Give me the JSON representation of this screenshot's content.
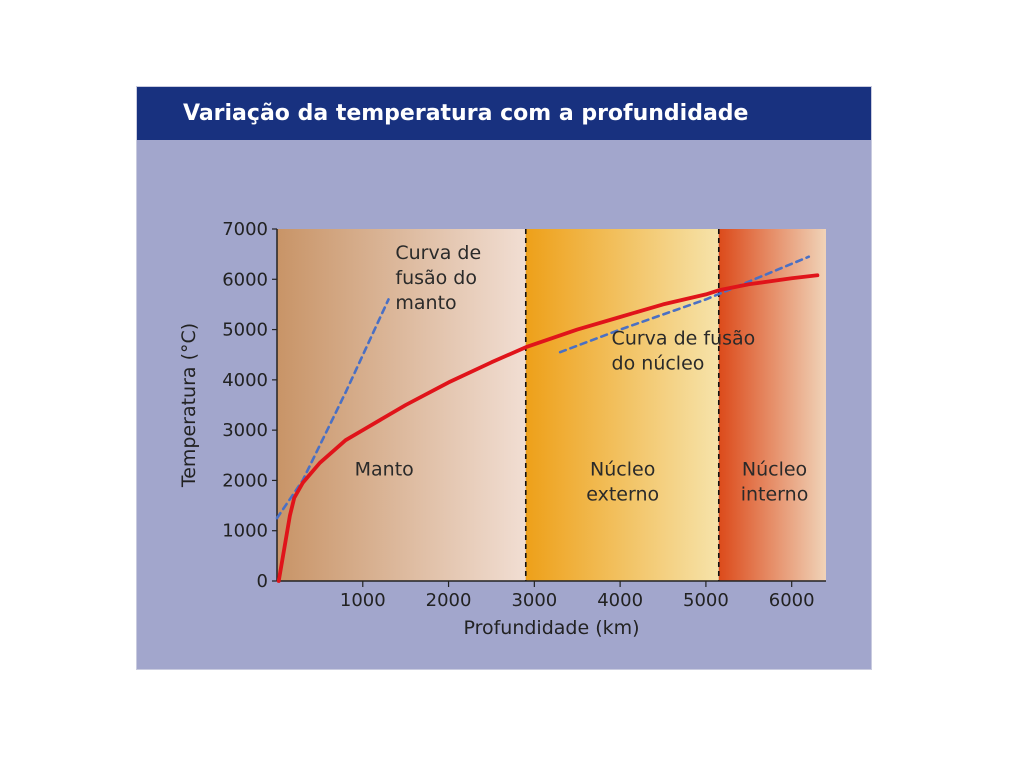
{
  "chart_data": {
    "type": "line",
    "title": "Variação da temperatura com a profundidade",
    "xlabel": "Profundidade (km)",
    "ylabel": "Temperatura (°C)",
    "xlim": [
      0,
      6400
    ],
    "ylim": [
      0,
      7000
    ],
    "xticks": [
      1000,
      2000,
      3000,
      4000,
      5000,
      6000
    ],
    "yticks": [
      0,
      1000,
      2000,
      3000,
      4000,
      5000,
      6000,
      7000
    ],
    "grid": false,
    "legend": "none",
    "regions": [
      {
        "label": "Manto",
        "x_range": [
          0,
          2900
        ],
        "colors": [
          "#c89467",
          "#f1ded3"
        ]
      },
      {
        "label": "Núcleo externo",
        "x_range": [
          2900,
          5150
        ],
        "colors": [
          "#eea019",
          "#f6e3aa"
        ]
      },
      {
        "label": "Núcleo interno",
        "x_range": [
          5150,
          6400
        ],
        "colors": [
          "#dc4a1a",
          "#f0d3b8"
        ]
      }
    ],
    "series": [
      {
        "style": "solid",
        "color": "#e0141a",
        "x": [
          20,
          50,
          100,
          150,
          200,
          300,
          500,
          800,
          1000,
          1500,
          2000,
          2500,
          2900,
          3500,
          4000,
          4500,
          5000,
          5150,
          5500,
          6000,
          6300
        ],
        "y": [
          0,
          300,
          800,
          1300,
          1650,
          1950,
          2350,
          2800,
          3000,
          3500,
          3950,
          4350,
          4650,
          5000,
          5250,
          5500,
          5700,
          5780,
          5900,
          6020,
          6080
        ]
      },
      {
        "style": "dashed",
        "color": "#4a70c4",
        "x": [
          0,
          300,
          800,
          1300
        ],
        "y": [
          1250,
          2000,
          3750,
          5600
        ]
      },
      {
        "style": "dashed",
        "color": "#4a70c4",
        "x": [
          3300,
          4000,
          5000,
          6200
        ],
        "y": [
          4550,
          5000,
          5600,
          6450
        ]
      }
    ],
    "annotations": {
      "mantle_melting": [
        "Curva de",
        "fusão do",
        "manto"
      ],
      "core_melting": [
        "Curva de fusão",
        "do núcleo"
      ],
      "manto": [
        "Manto"
      ],
      "nucleo_externo": [
        "Núcleo",
        "externo"
      ],
      "nucleo_interno": [
        "Núcleo",
        "interno"
      ]
    }
  }
}
